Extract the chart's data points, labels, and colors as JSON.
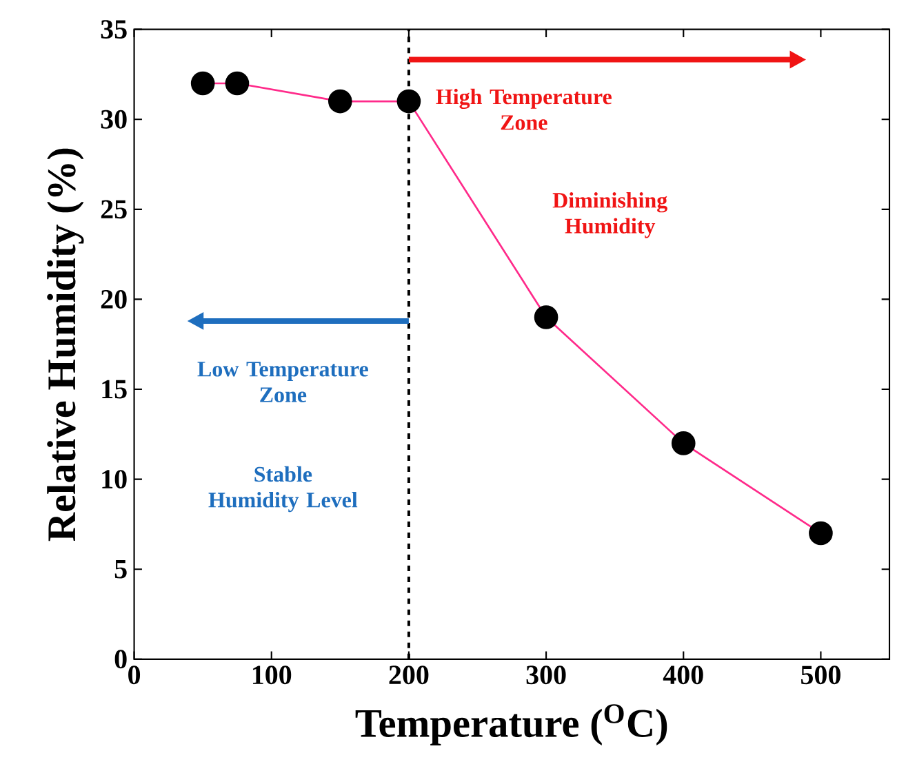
{
  "chart_data": {
    "type": "line",
    "xlabel": "Temperature ($^{O}$C)",
    "ylabel": "Relative Humidity (%)",
    "x": [
      50,
      75,
      150,
      200,
      300,
      400,
      500
    ],
    "series": [
      {
        "color": "#ff2a8a",
        "values": [
          32,
          32,
          31,
          31,
          19,
          12,
          7
        ]
      }
    ],
    "xlim": [
      0,
      550
    ],
    "ylim": [
      0,
      35
    ],
    "xticks": [
      0,
      100,
      200,
      300,
      400,
      500
    ],
    "yticks": [
      0,
      5,
      10,
      15,
      20,
      25,
      30,
      35
    ],
    "marker": "circle",
    "grid": false,
    "ref_lines": [
      {
        "axis": "x",
        "value": 200,
        "color": "#000000",
        "line_style": "dashed"
      }
    ],
    "annotations": [
      "High Temperature Zone",
      "Diminishing Humidity",
      "Low Temperature Zone",
      "Stable Humidity Level"
    ]
  }
}
